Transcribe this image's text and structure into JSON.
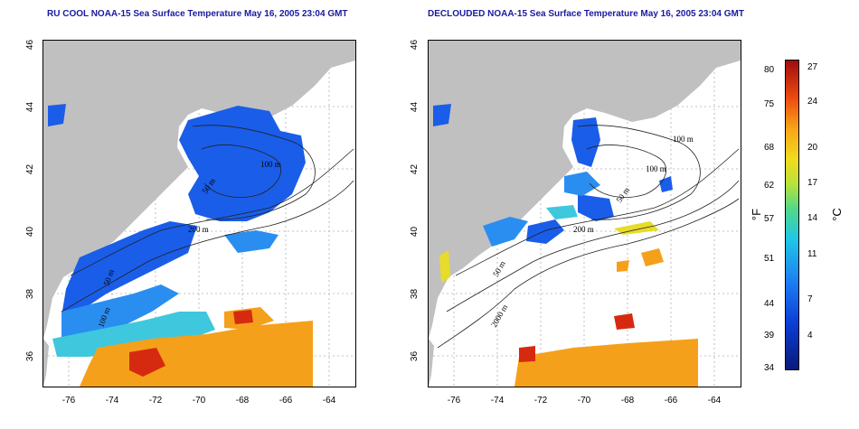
{
  "left_panel": {
    "title": "RU COOL NOAA-15 Sea Surface Temperature May 16, 2005 23:04 GMT",
    "depth_labels": [
      "100 m",
      "50 m",
      "200 m",
      "50 m",
      "100 m"
    ]
  },
  "right_panel": {
    "title": "DECLOUDED NOAA-15 Sea Surface Temperature May 16, 2005 23:04 GMT",
    "depth_labels": [
      "100 m",
      "100 m",
      "50 m",
      "200 m",
      "50 m",
      "2000 m"
    ]
  },
  "axes": {
    "lat_ticks": [
      "46",
      "44",
      "42",
      "40",
      "38",
      "36"
    ],
    "lon_ticks": [
      "-76",
      "-74",
      "-72",
      "-70",
      "-68",
      "-66",
      "-64"
    ]
  },
  "colorbar": {
    "fahrenheit_unit": "°F",
    "celsius_unit": "°C",
    "fahrenheit_ticks": [
      "80",
      "75",
      "68",
      "62",
      "57",
      "51",
      "44",
      "39",
      "34"
    ],
    "celsius_ticks": [
      "27",
      "24",
      "20",
      "17",
      "14",
      "11",
      "7",
      "4"
    ]
  },
  "colors": {
    "title": "#1a1aa0",
    "land": "#c0c0c0",
    "cold": "#1a5de8",
    "warm": "#f5a01a",
    "hot": "#d62a10"
  }
}
